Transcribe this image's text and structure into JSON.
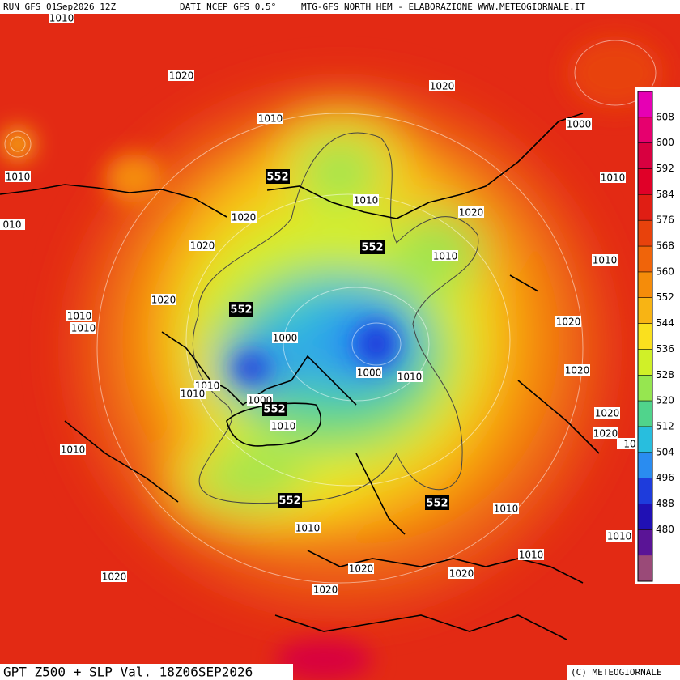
{
  "header": {
    "run": "RUN GFS 01Sep2026 12Z",
    "source": "DATI NCEP GFS 0.5°",
    "product": "MTG-GFS NORTH HEM - ELABORAZIONE WWW.METEOGIORNALE.IT"
  },
  "footer": {
    "title": "GPT Z500 + SLP Val. 18Z06SEP2026",
    "credit": "(C) METEOGIORNALE"
  },
  "legend": {
    "levels": [
      608,
      600,
      592,
      584,
      576,
      568,
      560,
      552,
      544,
      536,
      528,
      520,
      512,
      504,
      496,
      488,
      480
    ],
    "colors": [
      "#e600b4",
      "#e6006e",
      "#d80040",
      "#e00028",
      "#e01e14",
      "#e8420c",
      "#f0640a",
      "#f58c0a",
      "#f8b414",
      "#fae01e",
      "#d0f028",
      "#96e650",
      "#50d48c",
      "#28bede",
      "#2a8cf0",
      "#1e3cdc",
      "#2010b4",
      "#5a1496",
      "#9a4a78"
    ]
  },
  "contour_labels": [
    1010,
    1020,
    1020,
    1010,
    1000,
    1010,
    552,
    1010,
    1010,
    1020,
    1020,
    "010",
    1020,
    552,
    1010,
    1010,
    1020,
    552,
    1010,
    1010,
    1020,
    1000,
    1000,
    1010,
    1020,
    1010,
    1010,
    1000,
    552,
    1010,
    1020,
    1020,
    "10",
    1010,
    552,
    552,
    1010,
    1010,
    1010,
    1010,
    1020,
    1020,
    1020,
    1020
  ]
}
